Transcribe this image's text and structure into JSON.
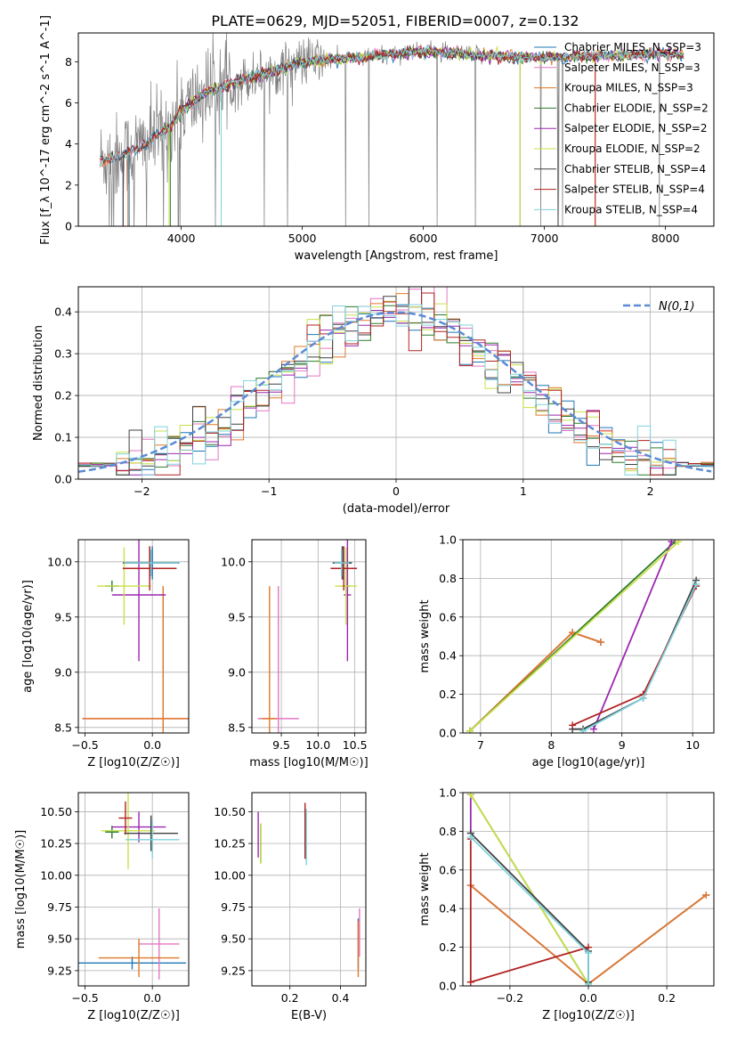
{
  "figure_title": "PLATE=0629, MJD=52051, FIBERID=0007, z=0.132",
  "colors": {
    "Chabrier MILES": "#1f77b4",
    "Salpeter MILES": "#e377c2",
    "Kroupa MILES": "#e07a2a",
    "Chabrier ELODIE": "#2d7a2d",
    "Salpeter ELODIE": "#9c27b0",
    "Kroupa ELODIE": "#c8e04a",
    "Chabrier STELIB": "#404040",
    "Salpeter STELIB": "#b22222",
    "Kroupa STELIB": "#7fd3dc",
    "data": "#808080",
    "normal": "#5b8bd6"
  },
  "chart_data": [
    {
      "id": "spectrum",
      "type": "line",
      "title": "PLATE=0629, MJD=52051, FIBERID=0007, z=0.132",
      "xlabel": "wavelength [Angstrom, rest frame]",
      "ylabel": "Flux [f_λ 10^-17 erg cm^-2 s^-1 A^-1]",
      "xlim": [
        3150,
        8400
      ],
      "ylim": [
        0,
        9.4
      ],
      "xticks": [
        4000,
        5000,
        6000,
        7000,
        8000
      ],
      "yticks": [
        0,
        2,
        4,
        6,
        8
      ],
      "grid": false,
      "legend_position": "top-right",
      "legend": [
        "Chabrier MILES, N_SSP=3",
        "Salpeter MILES, N_SSP=3",
        "Kroupa MILES, N_SSP=3",
        "Chabrier ELODIE, N_SSP=2",
        "Salpeter ELODIE, N_SSP=2",
        "Kroupa ELODIE, N_SSP=2",
        "Chabrier STELIB, N_SSP=4",
        "Salpeter STELIB, N_SSP=4",
        "Kroupa STELIB, N_SSP=4"
      ],
      "continuum": {
        "x": [
          3330,
          3500,
          3700,
          3900,
          4000,
          4200,
          4500,
          4800,
          5000,
          5200,
          5500,
          5800,
          6000,
          6500,
          7000,
          7500,
          8000,
          8150
        ],
        "y": [
          3.2,
          3.4,
          4.0,
          4.8,
          5.6,
          6.5,
          7.1,
          7.6,
          8.0,
          8.1,
          8.2,
          8.4,
          8.5,
          8.3,
          8.2,
          8.3,
          8.4,
          8.3
        ]
      }
    },
    {
      "id": "residuals",
      "type": "line",
      "xlabel": "(data-model)/error",
      "ylabel": "Normed distribution",
      "xlim": [
        -2.5,
        2.5
      ],
      "ylim": [
        0,
        0.46
      ],
      "xticks": [
        -2,
        -1,
        0,
        1,
        2
      ],
      "yticks": [
        0.0,
        0.1,
        0.2,
        0.3,
        0.4
      ],
      "grid": true,
      "legend_position": "top-right",
      "legend": [
        "N(0,1)"
      ],
      "bin_width": 0.1
    },
    {
      "id": "age-vs-Z",
      "type": "scatter",
      "xlabel": "Z [log10(Z/Z☉)]",
      "ylabel": "age [log10(age/yr)]",
      "xlim": [
        -0.55,
        0.27
      ],
      "ylim": [
        8.45,
        10.2
      ],
      "xticks": [
        -0.5,
        0.0
      ],
      "yticks": [
        8.5,
        9.0,
        9.5,
        10.0
      ],
      "grid": true,
      "points": [
        {
          "series": "Chabrier MILES",
          "x": 0.0,
          "y": 9.99,
          "xerr": 0.2,
          "yerr": 0.15
        },
        {
          "series": "Salpeter MILES",
          "x": 0.08,
          "y": 8.58,
          "xerr": 0.6,
          "yerr": 1.2
        },
        {
          "series": "Kroupa MILES",
          "x": 0.08,
          "y": 8.58,
          "xerr": 0.6,
          "yerr": 1.2
        },
        {
          "series": "Chabrier ELODIE",
          "x": -0.3,
          "y": 9.78,
          "xerr": 0.05,
          "yerr": 0.05
        },
        {
          "series": "Salpeter ELODIE",
          "x": -0.1,
          "y": 9.7,
          "xerr": 0.2,
          "yerr": 0.6
        },
        {
          "series": "Kroupa ELODIE",
          "x": -0.21,
          "y": 9.78,
          "xerr": 0.2,
          "yerr": 0.35
        },
        {
          "series": "Chabrier STELIB",
          "x": -0.02,
          "y": 9.99,
          "xerr": 0.2,
          "yerr": 0.15
        },
        {
          "series": "Salpeter STELIB",
          "x": -0.02,
          "y": 9.94,
          "xerr": 0.2,
          "yerr": 0.2
        },
        {
          "series": "Kroupa STELIB",
          "x": -0.01,
          "y": 9.99,
          "xerr": 0.2,
          "yerr": 0.12
        }
      ]
    },
    {
      "id": "age-vs-mass",
      "type": "scatter",
      "xlabel": "mass [log10(M/M☉)]",
      "ylabel": "",
      "xlim": [
        9.1,
        10.65
      ],
      "ylim": [
        8.45,
        10.2
      ],
      "xticks": [
        9.5,
        10.0,
        10.5
      ],
      "yticks": [
        8.5,
        9.0,
        9.5,
        10.0
      ],
      "grid": true,
      "points": [
        {
          "series": "Chabrier MILES",
          "x": 10.33,
          "y": 9.99,
          "xerr": 0.13,
          "yerr": 0.15
        },
        {
          "series": "Salpeter MILES",
          "x": 9.46,
          "y": 8.58,
          "xerr": 0.28,
          "yerr": 1.2
        },
        {
          "series": "Kroupa MILES",
          "x": 9.34,
          "y": 8.58,
          "xerr": 0.1,
          "yerr": 1.2
        },
        {
          "series": "Chabrier ELODIE",
          "x": 10.38,
          "y": 9.78,
          "xerr": 0.05,
          "yerr": 0.05
        },
        {
          "series": "Salpeter ELODIE",
          "x": 10.4,
          "y": 9.7,
          "xerr": 0.05,
          "yerr": 0.6
        },
        {
          "series": "Kroupa ELODIE",
          "x": 10.38,
          "y": 9.78,
          "xerr": 0.15,
          "yerr": 0.35
        },
        {
          "series": "Chabrier STELIB",
          "x": 10.33,
          "y": 9.99,
          "xerr": 0.13,
          "yerr": 0.15
        },
        {
          "series": "Salpeter STELIB",
          "x": 10.35,
          "y": 9.94,
          "xerr": 0.18,
          "yerr": 0.2
        },
        {
          "series": "Kroupa STELIB",
          "x": 10.32,
          "y": 9.99,
          "xerr": 0.1,
          "yerr": 0.12
        }
      ]
    },
    {
      "id": "weight-vs-age",
      "type": "line",
      "xlabel": "age [log10(age/yr)]",
      "ylabel": "mass weight",
      "xlim": [
        6.75,
        10.3
      ],
      "ylim": [
        0,
        1.0
      ],
      "xticks": [
        7,
        8,
        9,
        10
      ],
      "yticks": [
        0.0,
        0.2,
        0.4,
        0.6,
        0.8,
        1.0
      ],
      "grid": true,
      "series": [
        {
          "name": "Chabrier MILES",
          "x": [
            6.85,
            8.3,
            8.7
          ],
          "y": [
            0.01,
            0.52,
            0.47
          ]
        },
        {
          "name": "Salpeter MILES",
          "x": [
            6.85,
            8.3,
            8.7
          ],
          "y": [
            0.01,
            0.52,
            0.47
          ]
        },
        {
          "name": "Kroupa MILES",
          "x": [
            6.85,
            8.3,
            8.7
          ],
          "y": [
            0.01,
            0.52,
            0.47
          ]
        },
        {
          "name": "Chabrier ELODIE",
          "x": [
            6.85,
            9.75
          ],
          "y": [
            0.01,
            0.99
          ]
        },
        {
          "name": "Salpeter ELODIE",
          "x": [
            8.6,
            9.7
          ],
          "y": [
            0.02,
            0.99
          ]
        },
        {
          "name": "Kroupa ELODIE",
          "x": [
            6.85,
            9.8
          ],
          "y": [
            0.01,
            0.99
          ]
        },
        {
          "name": "Chabrier STELIB",
          "x": [
            8.3,
            8.45,
            9.3,
            10.05
          ],
          "y": [
            0.02,
            0.02,
            0.18,
            0.79
          ]
        },
        {
          "name": "Salpeter STELIB",
          "x": [
            8.3,
            9.3,
            10.05
          ],
          "y": [
            0.04,
            0.2,
            0.76
          ]
        },
        {
          "name": "Kroupa STELIB",
          "x": [
            8.45,
            9.3,
            10.05
          ],
          "y": [
            0.01,
            0.18,
            0.77
          ]
        }
      ]
    },
    {
      "id": "mass-vs-Z",
      "type": "scatter",
      "xlabel": "Z [log10(Z/Z☉)]",
      "ylabel": "mass [log10(M/M☉)]",
      "xlim": [
        -0.55,
        0.27
      ],
      "ylim": [
        9.13,
        10.65
      ],
      "xticks": [
        -0.5,
        0.0
      ],
      "yticks": [
        9.25,
        9.5,
        9.75,
        10.0,
        10.25,
        10.5
      ],
      "grid": true,
      "points": [
        {
          "series": "Chabrier MILES",
          "x": -0.15,
          "y": 9.31,
          "xerr": 0.4,
          "yerr": 0.05
        },
        {
          "series": "Salpeter MILES",
          "x": 0.05,
          "y": 9.46,
          "xerr": 0.15,
          "yerr": 0.28
        },
        {
          "series": "Kroupa MILES",
          "x": -0.1,
          "y": 9.35,
          "xerr": 0.3,
          "yerr": 0.15
        },
        {
          "series": "Chabrier ELODIE",
          "x": -0.3,
          "y": 10.34,
          "xerr": 0.05,
          "yerr": 0.05
        },
        {
          "series": "Salpeter ELODIE",
          "x": -0.1,
          "y": 10.38,
          "xerr": 0.2,
          "yerr": 0.12
        },
        {
          "series": "Kroupa ELODIE",
          "x": -0.18,
          "y": 10.35,
          "xerr": 0.2,
          "yerr": 0.3
        },
        {
          "series": "Chabrier STELIB",
          "x": -0.01,
          "y": 10.33,
          "xerr": 0.2,
          "yerr": 0.14
        },
        {
          "series": "Salpeter STELIB",
          "x": -0.2,
          "y": 10.45,
          "xerr": 0.05,
          "yerr": 0.13
        },
        {
          "series": "Kroupa STELIB",
          "x": 0.0,
          "y": 10.28,
          "xerr": 0.2,
          "yerr": 0.15
        }
      ]
    },
    {
      "id": "mass-vs-EBV",
      "type": "scatter",
      "xlabel": "E(B-V)",
      "ylabel": "",
      "xlim": [
        0.05,
        0.5
      ],
      "ylim": [
        9.13,
        10.65
      ],
      "xticks": [
        0.2,
        0.4
      ],
      "yticks": [
        9.25,
        9.5,
        9.75,
        10.0,
        10.25,
        10.5
      ],
      "grid": true,
      "points": [
        {
          "series": "Chabrier MILES",
          "x": 0.47,
          "y": 9.46,
          "yerr": 0.2
        },
        {
          "series": "Salpeter MILES",
          "x": 0.475,
          "y": 9.55,
          "yerr": 0.19
        },
        {
          "series": "Kroupa MILES",
          "x": 0.47,
          "y": 9.42,
          "yerr": 0.22
        },
        {
          "series": "Chabrier ELODIE",
          "x": 0.085,
          "y": 10.25,
          "yerr": 0.15
        },
        {
          "series": "Salpeter ELODIE",
          "x": 0.075,
          "y": 10.32,
          "yerr": 0.18
        },
        {
          "series": "Kroupa ELODIE",
          "x": 0.085,
          "y": 10.25,
          "yerr": 0.16
        },
        {
          "series": "Chabrier STELIB",
          "x": 0.26,
          "y": 10.33,
          "yerr": 0.2
        },
        {
          "series": "Salpeter STELIB",
          "x": 0.26,
          "y": 10.35,
          "yerr": 0.22
        },
        {
          "series": "Kroupa STELIB",
          "x": 0.265,
          "y": 10.3,
          "yerr": 0.22
        }
      ]
    },
    {
      "id": "weight-vs-Z",
      "type": "line",
      "xlabel": "Z [log10(Z/Z☉)]",
      "ylabel": "mass weight",
      "xlim": [
        -0.32,
        0.32
      ],
      "ylim": [
        0,
        1.0
      ],
      "xticks": [
        -0.2,
        0.0,
        0.2
      ],
      "yticks": [
        0.0,
        0.2,
        0.4,
        0.6,
        0.8,
        1.0
      ],
      "grid": true,
      "series": [
        {
          "name": "Chabrier MILES",
          "x": [
            -0.3,
            0.0,
            0.3
          ],
          "y": [
            0.52,
            0.01,
            0.47
          ]
        },
        {
          "name": "Salpeter MILES",
          "x": [
            -0.3,
            0.0,
            0.3
          ],
          "y": [
            0.52,
            0.01,
            0.47
          ]
        },
        {
          "name": "Kroupa MILES",
          "x": [
            -0.3,
            0.0,
            0.3
          ],
          "y": [
            0.52,
            0.01,
            0.47
          ]
        },
        {
          "name": "Chabrier ELODIE",
          "x": [
            -0.3,
            0.0
          ],
          "y": [
            0.99,
            0.01
          ]
        },
        {
          "name": "Salpeter ELODIE",
          "x": [
            -0.3,
            -0.3
          ],
          "y": [
            0.99,
            0.79
          ]
        },
        {
          "name": "Kroupa ELODIE",
          "x": [
            -0.3,
            0.0
          ],
          "y": [
            0.99,
            0.01
          ]
        },
        {
          "name": "Chabrier STELIB",
          "x": [
            -0.3,
            0.0,
            0.0
          ],
          "y": [
            0.79,
            0.18,
            0.02
          ]
        },
        {
          "name": "Salpeter STELIB",
          "x": [
            -0.3,
            -0.3,
            0.0,
            -0.3
          ],
          "y": [
            0.76,
            0.02,
            0.2,
            0.02
          ]
        },
        {
          "name": "Kroupa STELIB",
          "x": [
            -0.3,
            0.0,
            0.0
          ],
          "y": [
            0.77,
            0.17,
            0.01
          ]
        }
      ]
    }
  ]
}
